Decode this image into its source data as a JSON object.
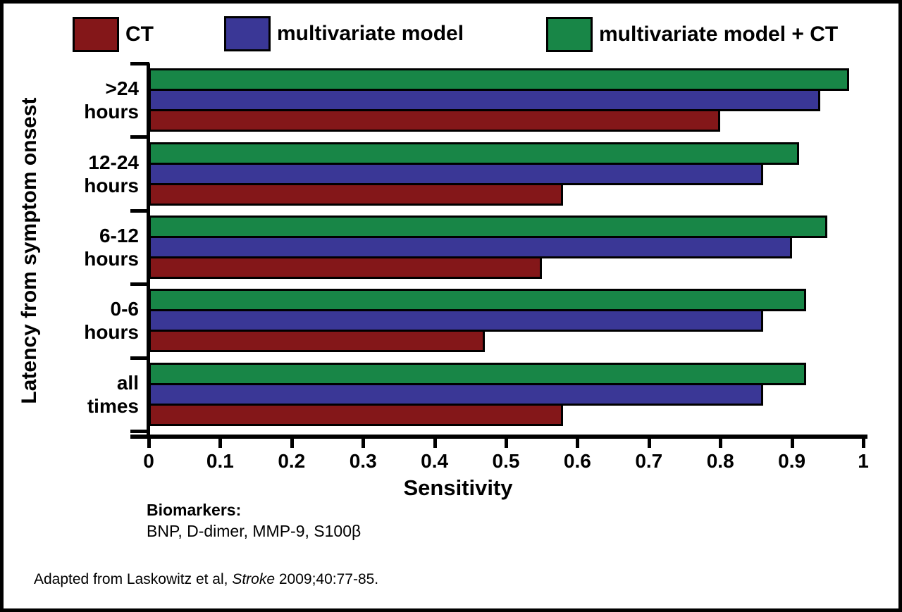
{
  "legend": {
    "items": [
      {
        "label": "CT",
        "color": "#841719"
      },
      {
        "label": "multivariate model",
        "color": "#3A3796"
      },
      {
        "label": "multivariate model + CT",
        "color": "#188647"
      }
    ]
  },
  "chart_data": {
    "type": "bar",
    "orientation": "horizontal",
    "xlabel": "Sensitivity",
    "ylabel": "Latency from symptom onsest",
    "xlim": [
      0,
      1
    ],
    "x_tick_values": [
      0,
      0.1,
      0.2,
      0.3,
      0.4,
      0.5,
      0.6,
      0.7,
      0.8,
      0.9,
      1
    ],
    "x_tick_labels": [
      "0",
      "0.1",
      "0.2",
      "0.3",
      "0.4",
      "0.5",
      "0.6",
      "0.7",
      "0.8",
      "0.9",
      "1"
    ],
    "grid": false,
    "legend_position": "top",
    "categories": [
      {
        "line1": ">24",
        "line2": "hours"
      },
      {
        "line1": "12-24",
        "line2": "hours"
      },
      {
        "line1": "6-12",
        "line2": "hours"
      },
      {
        "line1": "0-6",
        "line2": "hours"
      },
      {
        "line1": "all",
        "line2": "times"
      }
    ],
    "series": [
      {
        "name": "CT",
        "color": "#841719",
        "values": [
          0.8,
          0.58,
          0.55,
          0.47,
          0.58
        ]
      },
      {
        "name": "multivariate model",
        "color": "#3A3796",
        "values": [
          0.94,
          0.86,
          0.9,
          0.86,
          0.86
        ]
      },
      {
        "name": "multivariate model + CT",
        "color": "#188647",
        "values": [
          0.98,
          0.91,
          0.95,
          0.92,
          0.92
        ]
      }
    ],
    "bar_order_top_to_bottom": [
      2,
      1,
      0
    ]
  },
  "notes": {
    "biomarkers_title": "Biomarkers:",
    "biomarkers_list": "BNP, D-dimer, MMP-9, S100β"
  },
  "citation": {
    "prefix": "Adapted from Laskowitz et al, ",
    "italic": "Stroke",
    "suffix": " 2009;40:77-85."
  }
}
